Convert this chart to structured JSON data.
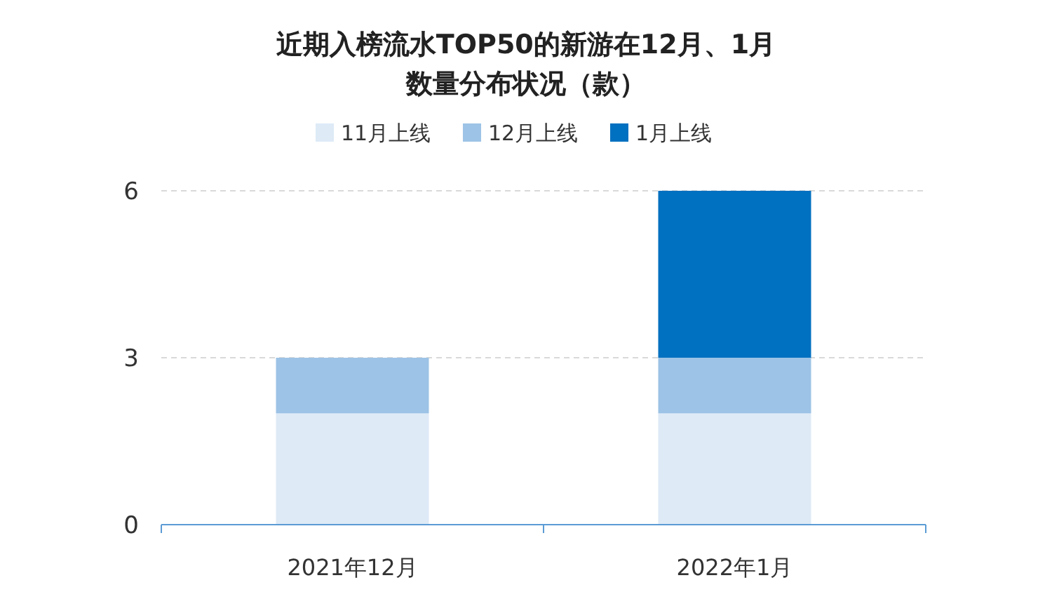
{
  "chart_data": {
    "type": "bar",
    "title": "近期入榜流水TOP50的新游在12月、1月数量分布状况（款）",
    "categories": [
      "2021年12月",
      "2022年1月"
    ],
    "series": [
      {
        "name": "11月上线",
        "color": "#deeaf6",
        "values": [
          2,
          2
        ]
      },
      {
        "name": "12月上线",
        "color": "#9dc3e6",
        "values": [
          1,
          1
        ]
      },
      {
        "name": "1月上线",
        "color": "#0070c0",
        "values": [
          0,
          3
        ]
      }
    ],
    "stacked": true,
    "ylim": [
      0,
      6
    ],
    "yticks": [
      0,
      3,
      6
    ],
    "grid": "y",
    "legend": "top"
  }
}
